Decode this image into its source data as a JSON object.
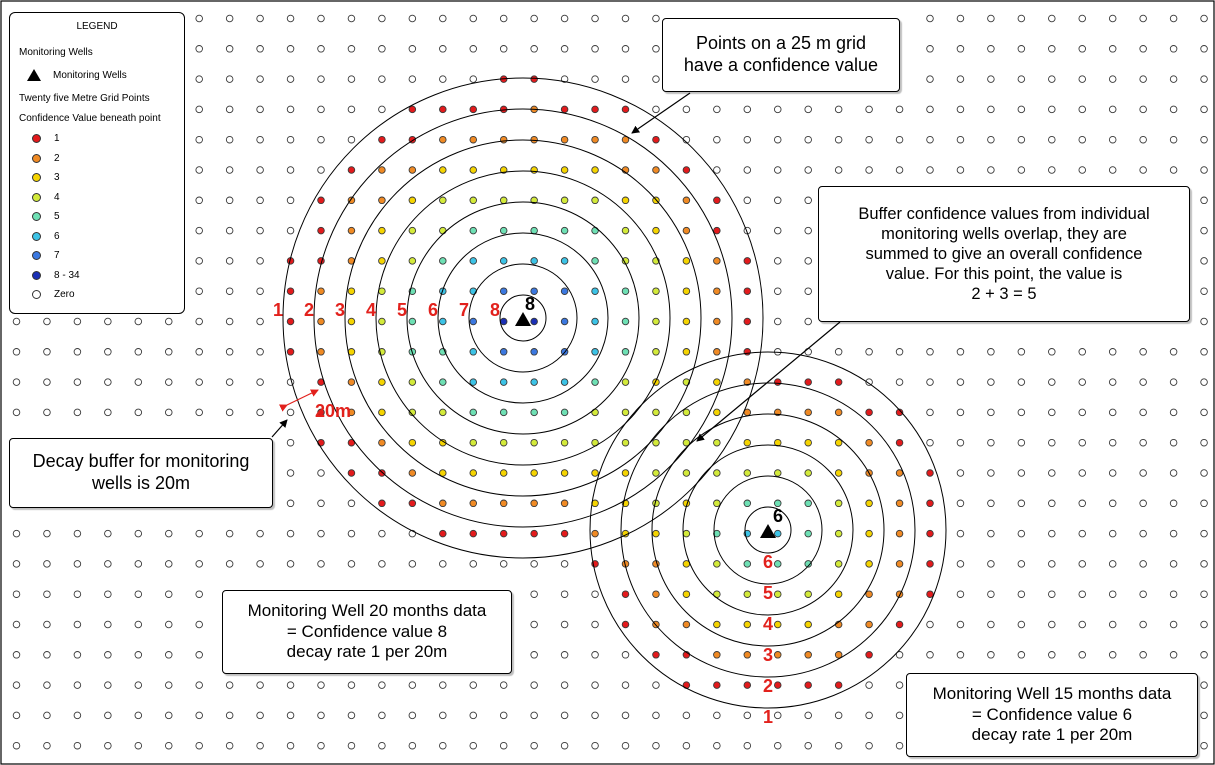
{
  "legend": {
    "title": "LEGEND",
    "wells_heading": "Monitoring Wells",
    "wells_item": "Monitoring Wells",
    "grid_heading": "Twenty five Metre Grid Points",
    "confidence_heading": "Confidence Value beneath point",
    "items": [
      {
        "label": "1",
        "color": "#e31a1c"
      },
      {
        "label": "2",
        "color": "#f08a24"
      },
      {
        "label": "3",
        "color": "#f5d400"
      },
      {
        "label": "4",
        "color": "#d3ea3a"
      },
      {
        "label": "5",
        "color": "#6ee0b4"
      },
      {
        "label": "6",
        "color": "#3cc3e6"
      },
      {
        "label": "7",
        "color": "#3b78e0"
      },
      {
        "label": "8 - 34",
        "color": "#1a2fb5"
      },
      {
        "label": "Zero",
        "color": "#ffffff"
      }
    ]
  },
  "wells": [
    {
      "value_label": "8",
      "confidence": 8,
      "ring_labels": [
        "1",
        "2",
        "3",
        "4",
        "5",
        "6",
        "7",
        "8"
      ]
    },
    {
      "value_label": "6",
      "confidence": 6,
      "ring_labels": [
        "6",
        "5",
        "4",
        "3",
        "2",
        "1"
      ]
    }
  ],
  "measure_label": "20m",
  "callouts": {
    "grid_note": [
      "Points on a 25 m grid",
      "have a confidence value"
    ],
    "overlap_note": [
      "Buffer confidence values from individual",
      "monitoring wells overlap, they are",
      "summed to give an overall confidence",
      "value. For this point, the value is",
      "2 + 3 = 5"
    ],
    "decay_note": [
      "Decay buffer for monitoring",
      "wells is 20m"
    ],
    "well1_note": [
      "Monitoring Well 20 months data",
      "= Confidence value 8",
      "decay rate 1 per 20m"
    ],
    "well2_note": [
      "Monitoring Well 15 months data",
      "= Confidence value 6",
      "decay rate 1 per 20m"
    ]
  }
}
